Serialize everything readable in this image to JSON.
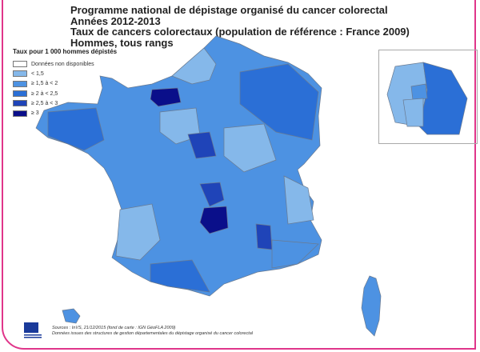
{
  "title": {
    "line1": "Programme national de dépistage organisé du cancer colorectal",
    "line2": "Années 2012-2013",
    "line3": "Taux de cancers colorectaux (population de référence : France 2009)",
    "line4": "Hommes, tous rangs"
  },
  "legend": {
    "title": "Taux pour 1 000 hommes dépistés",
    "items": [
      {
        "label": "Données non disponibles",
        "color": "#ffffff"
      },
      {
        "label": "< 1,5",
        "color": "#85b8ea"
      },
      {
        "label": "≥ 1,5 à < 2",
        "color": "#4d92e2"
      },
      {
        "label": "≥ 2 à < 2,5",
        "color": "#2b6fd6"
      },
      {
        "label": "≥ 2,5 à < 3",
        "color": "#1f44b8"
      },
      {
        "label": "≥ 3",
        "color": "#0a0f8a"
      }
    ]
  },
  "sources": {
    "line1": "Sources : InVS, 21/12/2015 (fond de carte : IGN GéoFLA 2009)",
    "line2": "Données issues des structures de gestion départementales du dépistage organisé du cancer colorectal"
  },
  "logo": "InVS Institut de veille sanitaire",
  "colors": {
    "border": "#e0358a"
  }
}
